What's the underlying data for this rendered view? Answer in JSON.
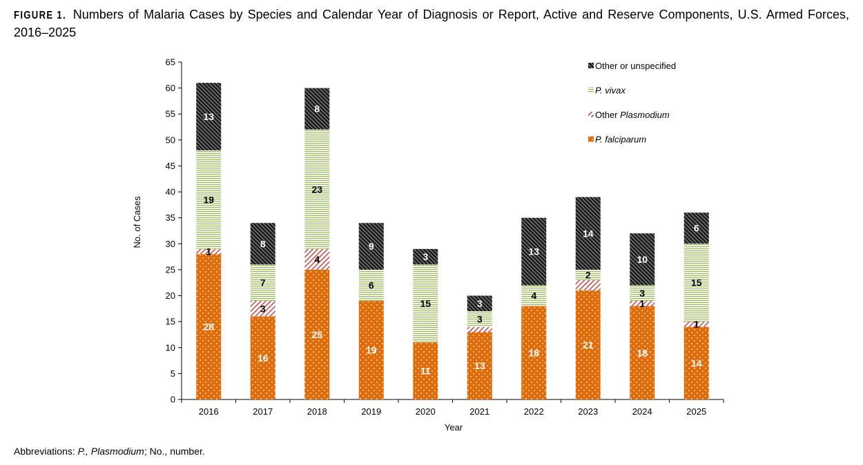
{
  "figure": {
    "label": "FIGURE 1.",
    "title": "Numbers of Malaria Cases by Species and Calendar Year of Diagnosis or Report, Active and Reserve Components, U.S. Armed Forces, 2016–2025"
  },
  "footnote": {
    "prefix": "Abbreviations: ",
    "italic_part": "P., Plasmodium",
    "suffix": "; No., number."
  },
  "chart_data": {
    "type": "bar",
    "stacked": true,
    "xlabel": "Year",
    "ylabel": "No. of Cases",
    "ylim": [
      0,
      65
    ],
    "yticks": [
      0,
      5,
      10,
      15,
      20,
      25,
      30,
      35,
      40,
      45,
      50,
      55,
      60,
      65
    ],
    "grid": false,
    "legend_placement": "top-right",
    "categories": [
      "2016",
      "2017",
      "2018",
      "2019",
      "2020",
      "2021",
      "2022",
      "2023",
      "2024",
      "2025"
    ],
    "series": [
      {
        "name": "P. falciparum",
        "name_parts": [
          {
            "t": "P. falciparum",
            "i": true
          }
        ],
        "color": "#e36c09",
        "pattern": "dots",
        "label_color": "#ffffff",
        "values": [
          28,
          16,
          25,
          19,
          11,
          13,
          18,
          21,
          18,
          14
        ]
      },
      {
        "name": "Other Plasmodium",
        "name_parts": [
          {
            "t": "Other ",
            "i": false
          },
          {
            "t": "Plasmodium",
            "i": true
          }
        ],
        "color": "#c0504d",
        "pattern": "diag-light",
        "label_color": "#000000",
        "values": [
          1,
          3,
          4,
          0,
          0,
          1,
          0,
          2,
          1,
          1
        ]
      },
      {
        "name": "P. vivax",
        "name_parts": [
          {
            "t": "P. vivax",
            "i": true
          }
        ],
        "color": "#9bbb59",
        "pattern": "horizontal",
        "label_color": "#000000",
        "values": [
          19,
          7,
          23,
          6,
          15,
          3,
          4,
          2,
          3,
          15
        ]
      },
      {
        "name": "Other or unspecified",
        "name_parts": [
          {
            "t": "Other or unspecified",
            "i": false
          }
        ],
        "color": "#262626",
        "pattern": "diag-dark",
        "label_color": "#ffffff",
        "values": [
          13,
          8,
          8,
          9,
          3,
          3,
          13,
          14,
          10,
          6
        ]
      }
    ],
    "data_labels": [
      [
        28,
        1,
        19,
        13
      ],
      [
        16,
        3,
        7,
        8
      ],
      [
        25,
        4,
        23,
        8
      ],
      [
        19,
        null,
        6,
        9
      ],
      [
        11,
        null,
        15,
        3
      ],
      [
        13,
        null,
        3,
        3
      ],
      [
        18,
        null,
        4,
        13
      ],
      [
        21,
        null,
        2,
        14
      ],
      [
        18,
        1,
        3,
        10
      ],
      [
        14,
        1,
        15,
        6
      ]
    ],
    "legend_order": [
      3,
      2,
      1,
      0
    ]
  }
}
